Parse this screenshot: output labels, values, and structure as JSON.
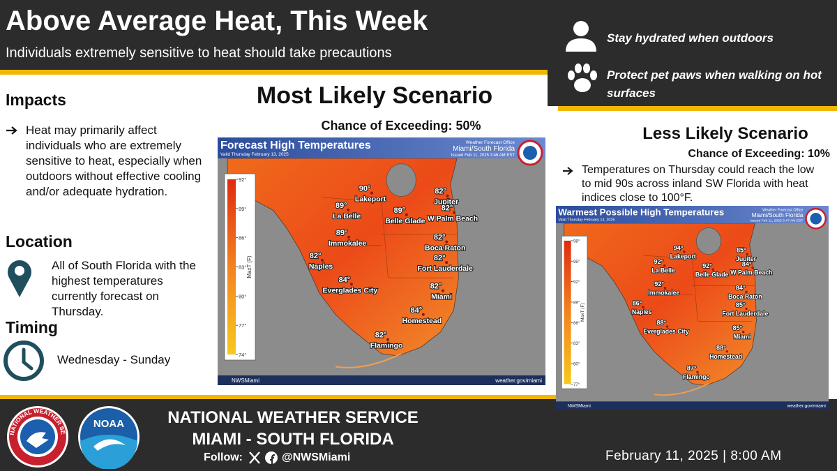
{
  "header": {
    "title": "Above Average Heat, This Week",
    "subtitle": "Individuals extremely sensitive to heat should take precautions"
  },
  "tips": [
    "Stay hydrated when outdoors",
    "Protect pet paws when walking on hot surfaces"
  ],
  "impacts": {
    "heading": "Impacts",
    "text": "Heat may primarily affect individuals who are extremely sensitive to heat, especially when outdoors without effective cooling and/or adequate hydration."
  },
  "location": {
    "heading": "Location",
    "text": "All of South Florida with the highest temperatures currently forecast on Thursday."
  },
  "timing": {
    "heading": "Timing",
    "text": "Wednesday - Sunday"
  },
  "most_likely": {
    "heading": "Most Likely Scenario",
    "chance": "Chance of Exceeding: 50%",
    "map": {
      "title": "Forecast High Temperatures",
      "valid": "Valid Thursday February 13, 2025",
      "office": "Weather Forecast Office",
      "office_name": "Miami/South Florida",
      "issued": "Issued Feb 11, 2025 3:46 AM EST",
      "colorbar_label": "MaxT (F)",
      "colorbar_ticks": [
        "92°",
        "89°",
        "86°",
        "83°",
        "80°",
        "77°",
        "74°"
      ],
      "places": [
        {
          "name": "Lakeport",
          "temp": "90°"
        },
        {
          "name": "La Belle",
          "temp": "89°"
        },
        {
          "name": "Belle Glade",
          "temp": "89°"
        },
        {
          "name": "Jupiter",
          "temp": "82°"
        },
        {
          "name": "W Palm Beach",
          "temp": "82°"
        },
        {
          "name": "Immokalee",
          "temp": "89°"
        },
        {
          "name": "Boca Raton",
          "temp": "82°"
        },
        {
          "name": "Naples",
          "temp": "82°"
        },
        {
          "name": "Fort Lauderdale",
          "temp": "82°"
        },
        {
          "name": "Everglades City",
          "temp": "84°"
        },
        {
          "name": "Miami",
          "temp": "82°"
        },
        {
          "name": "Homestead",
          "temp": "84°"
        },
        {
          "name": "Flamingo",
          "temp": "82°"
        }
      ],
      "footer_left": "NWSMiami",
      "footer_right": "weather.gov/miami"
    }
  },
  "less_likely": {
    "heading": "Less Likely Scenario",
    "chance": "Chance of Exceeding: 10%",
    "text": "Temperatures on Thursday could reach the low to mid 90s across inland SW Florida with heat indices close to 100°F.",
    "map": {
      "title": "Warmest Possible High Temperatures",
      "valid": "Valid Thursday February 13, 2025",
      "office": "Weather Forecast Office",
      "office_name": "Miami/South Florida",
      "issued": "Issued Feb 11, 2025 3:47 AM EST",
      "colorbar_label": "MaxT (F)",
      "colorbar_ticks": [
        "98°",
        "95°",
        "92°",
        "89°",
        "86°",
        "83°",
        "80°",
        "77°"
      ],
      "places": [
        {
          "name": "Lakeport",
          "temp": "94°"
        },
        {
          "name": "La Belle",
          "temp": "92°"
        },
        {
          "name": "Belle Glade",
          "temp": "92°"
        },
        {
          "name": "Jupiter",
          "temp": "85°"
        },
        {
          "name": "W Palm Beach",
          "temp": "84°"
        },
        {
          "name": "Immokalee",
          "temp": "92°"
        },
        {
          "name": "Boca Raton",
          "temp": "84°"
        },
        {
          "name": "Naples",
          "temp": "86°"
        },
        {
          "name": "Fort Lauderdale",
          "temp": "85°"
        },
        {
          "name": "Everglades City",
          "temp": "88°"
        },
        {
          "name": "Miami",
          "temp": "85°"
        },
        {
          "name": "Homestead",
          "temp": "88°"
        },
        {
          "name": "Flamingo",
          "temp": "87°"
        }
      ],
      "footer_left": "NWSMiami",
      "footer_right": "weather.gov/miami"
    }
  },
  "footer": {
    "org_line1": "NATIONAL WEATHER SERVICE",
    "org_line2": "MIAMI - SOUTH FLORIDA",
    "follow": "Follow:",
    "handle": "@NWSMiami",
    "date": "February 11, 2025 | 8:00 AM",
    "seal_text": "NATIONAL WEATHER SERVICE",
    "noaa": "NOAA"
  }
}
